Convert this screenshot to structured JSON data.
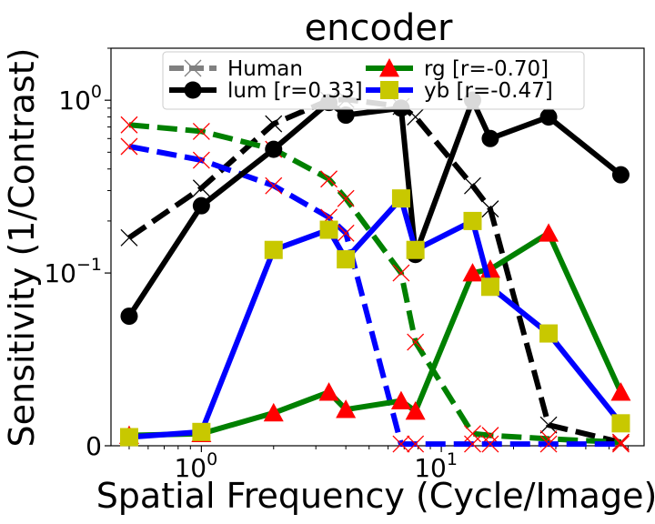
{
  "chart_data": {
    "type": "line",
    "title": "encoder",
    "xlabel": "Spatial Frequency (Cycle/Image)",
    "ylabel": "Sensitivity (1/Contrast)",
    "xscale": "log",
    "yscale": "symlog",
    "xlim": [
      0.42,
      70
    ],
    "ylim": [
      0,
      2.0
    ],
    "x_ticks": [
      {
        "value": 1,
        "base": "10",
        "exp": "0"
      },
      {
        "value": 10,
        "base": "10",
        "exp": "1"
      }
    ],
    "y_ticks": [
      {
        "value": 0,
        "label": "0"
      },
      {
        "value": 0.1,
        "base": "10",
        "exp": "−1"
      },
      {
        "value": 1,
        "base": "10",
        "exp": "0"
      }
    ],
    "legend_position": "top-center",
    "series": [
      {
        "name": "lum [r=0.33]",
        "role": "model",
        "color": "#000000",
        "marker": "circle",
        "marker_color": "#000000",
        "x": [
          0.5,
          1,
          2,
          3.4,
          4,
          6.8,
          7.8,
          13.5,
          16,
          28,
          56
        ],
        "y": [
          0.075,
          0.245,
          0.52,
          0.97,
          0.82,
          0.9,
          0.128,
          1.0,
          0.6,
          0.8,
          0.37
        ]
      },
      {
        "name": "Human",
        "role": "human",
        "color": "#000000",
        "marker": "x",
        "marker_color": "#000000",
        "x": [
          0.5,
          1,
          2,
          3.4,
          4,
          6.8,
          7.8,
          13.5,
          16,
          28,
          56
        ],
        "y": [
          0.16,
          0.31,
          0.73,
          1.0,
          1.01,
          0.92,
          0.8,
          0.32,
          0.235,
          0.012,
          0.002
        ]
      },
      {
        "name": "rg    [r=-0.70]",
        "role": "model",
        "color": "#008000",
        "marker": "triangle",
        "marker_color": "#ff0000",
        "x": [
          0.5,
          1,
          2,
          3.4,
          4,
          6.8,
          7.8,
          13.5,
          16,
          28,
          56
        ],
        "y": [
          0.006,
          0.007,
          0.019,
          0.031,
          0.021,
          0.026,
          0.02,
          0.1,
          0.105,
          0.17,
          0.031
        ]
      },
      {
        "name": "Human",
        "role": "human",
        "color": "#008000",
        "marker": "x",
        "marker_color": "#ff0000",
        "x": [
          0.5,
          1,
          2,
          3.4,
          4,
          6.8,
          7.8,
          13.5,
          16,
          28,
          56
        ],
        "y": [
          0.72,
          0.66,
          0.52,
          0.35,
          0.27,
          0.1,
          0.06,
          0.007,
          0.006,
          0.004,
          0.002
        ]
      },
      {
        "name": "yb    [r=-0.47]",
        "role": "model",
        "color": "#0000ff",
        "marker": "square",
        "marker_color": "#c8c800",
        "x": [
          0.5,
          1,
          2,
          3.4,
          4,
          6.8,
          7.8,
          13.5,
          16,
          28,
          56
        ],
        "y": [
          0.005,
          0.008,
          0.136,
          0.178,
          0.12,
          0.27,
          0.136,
          0.2,
          0.092,
          0.065,
          0.013
        ]
      },
      {
        "name": "Human",
        "role": "human",
        "color": "#0000ff",
        "marker": "x",
        "marker_color": "#ff0000",
        "x": [
          0.5,
          1,
          2,
          3.4,
          4,
          6.8,
          7.8,
          13.5,
          16,
          28,
          56
        ],
        "y": [
          0.54,
          0.45,
          0.32,
          0.21,
          0.17,
          0.001,
          0.001,
          0.001,
          0.001,
          0.001,
          0.001
        ]
      }
    ],
    "legend": [
      {
        "label": "Human",
        "color": "#808080",
        "marker": "x",
        "marker_color": "#808080",
        "dashed": true
      },
      {
        "label": "rg    [r=-0.70]",
        "color": "#008000",
        "marker": "triangle",
        "marker_color": "#ff0000",
        "dashed": false
      },
      {
        "label": "lum [r=0.33]",
        "color": "#000000",
        "marker": "circle",
        "marker_color": "#000000",
        "dashed": false
      },
      {
        "label": "yb    [r=-0.47]",
        "color": "#0000ff",
        "marker": "square",
        "marker_color": "#c8c800",
        "dashed": false
      }
    ]
  }
}
